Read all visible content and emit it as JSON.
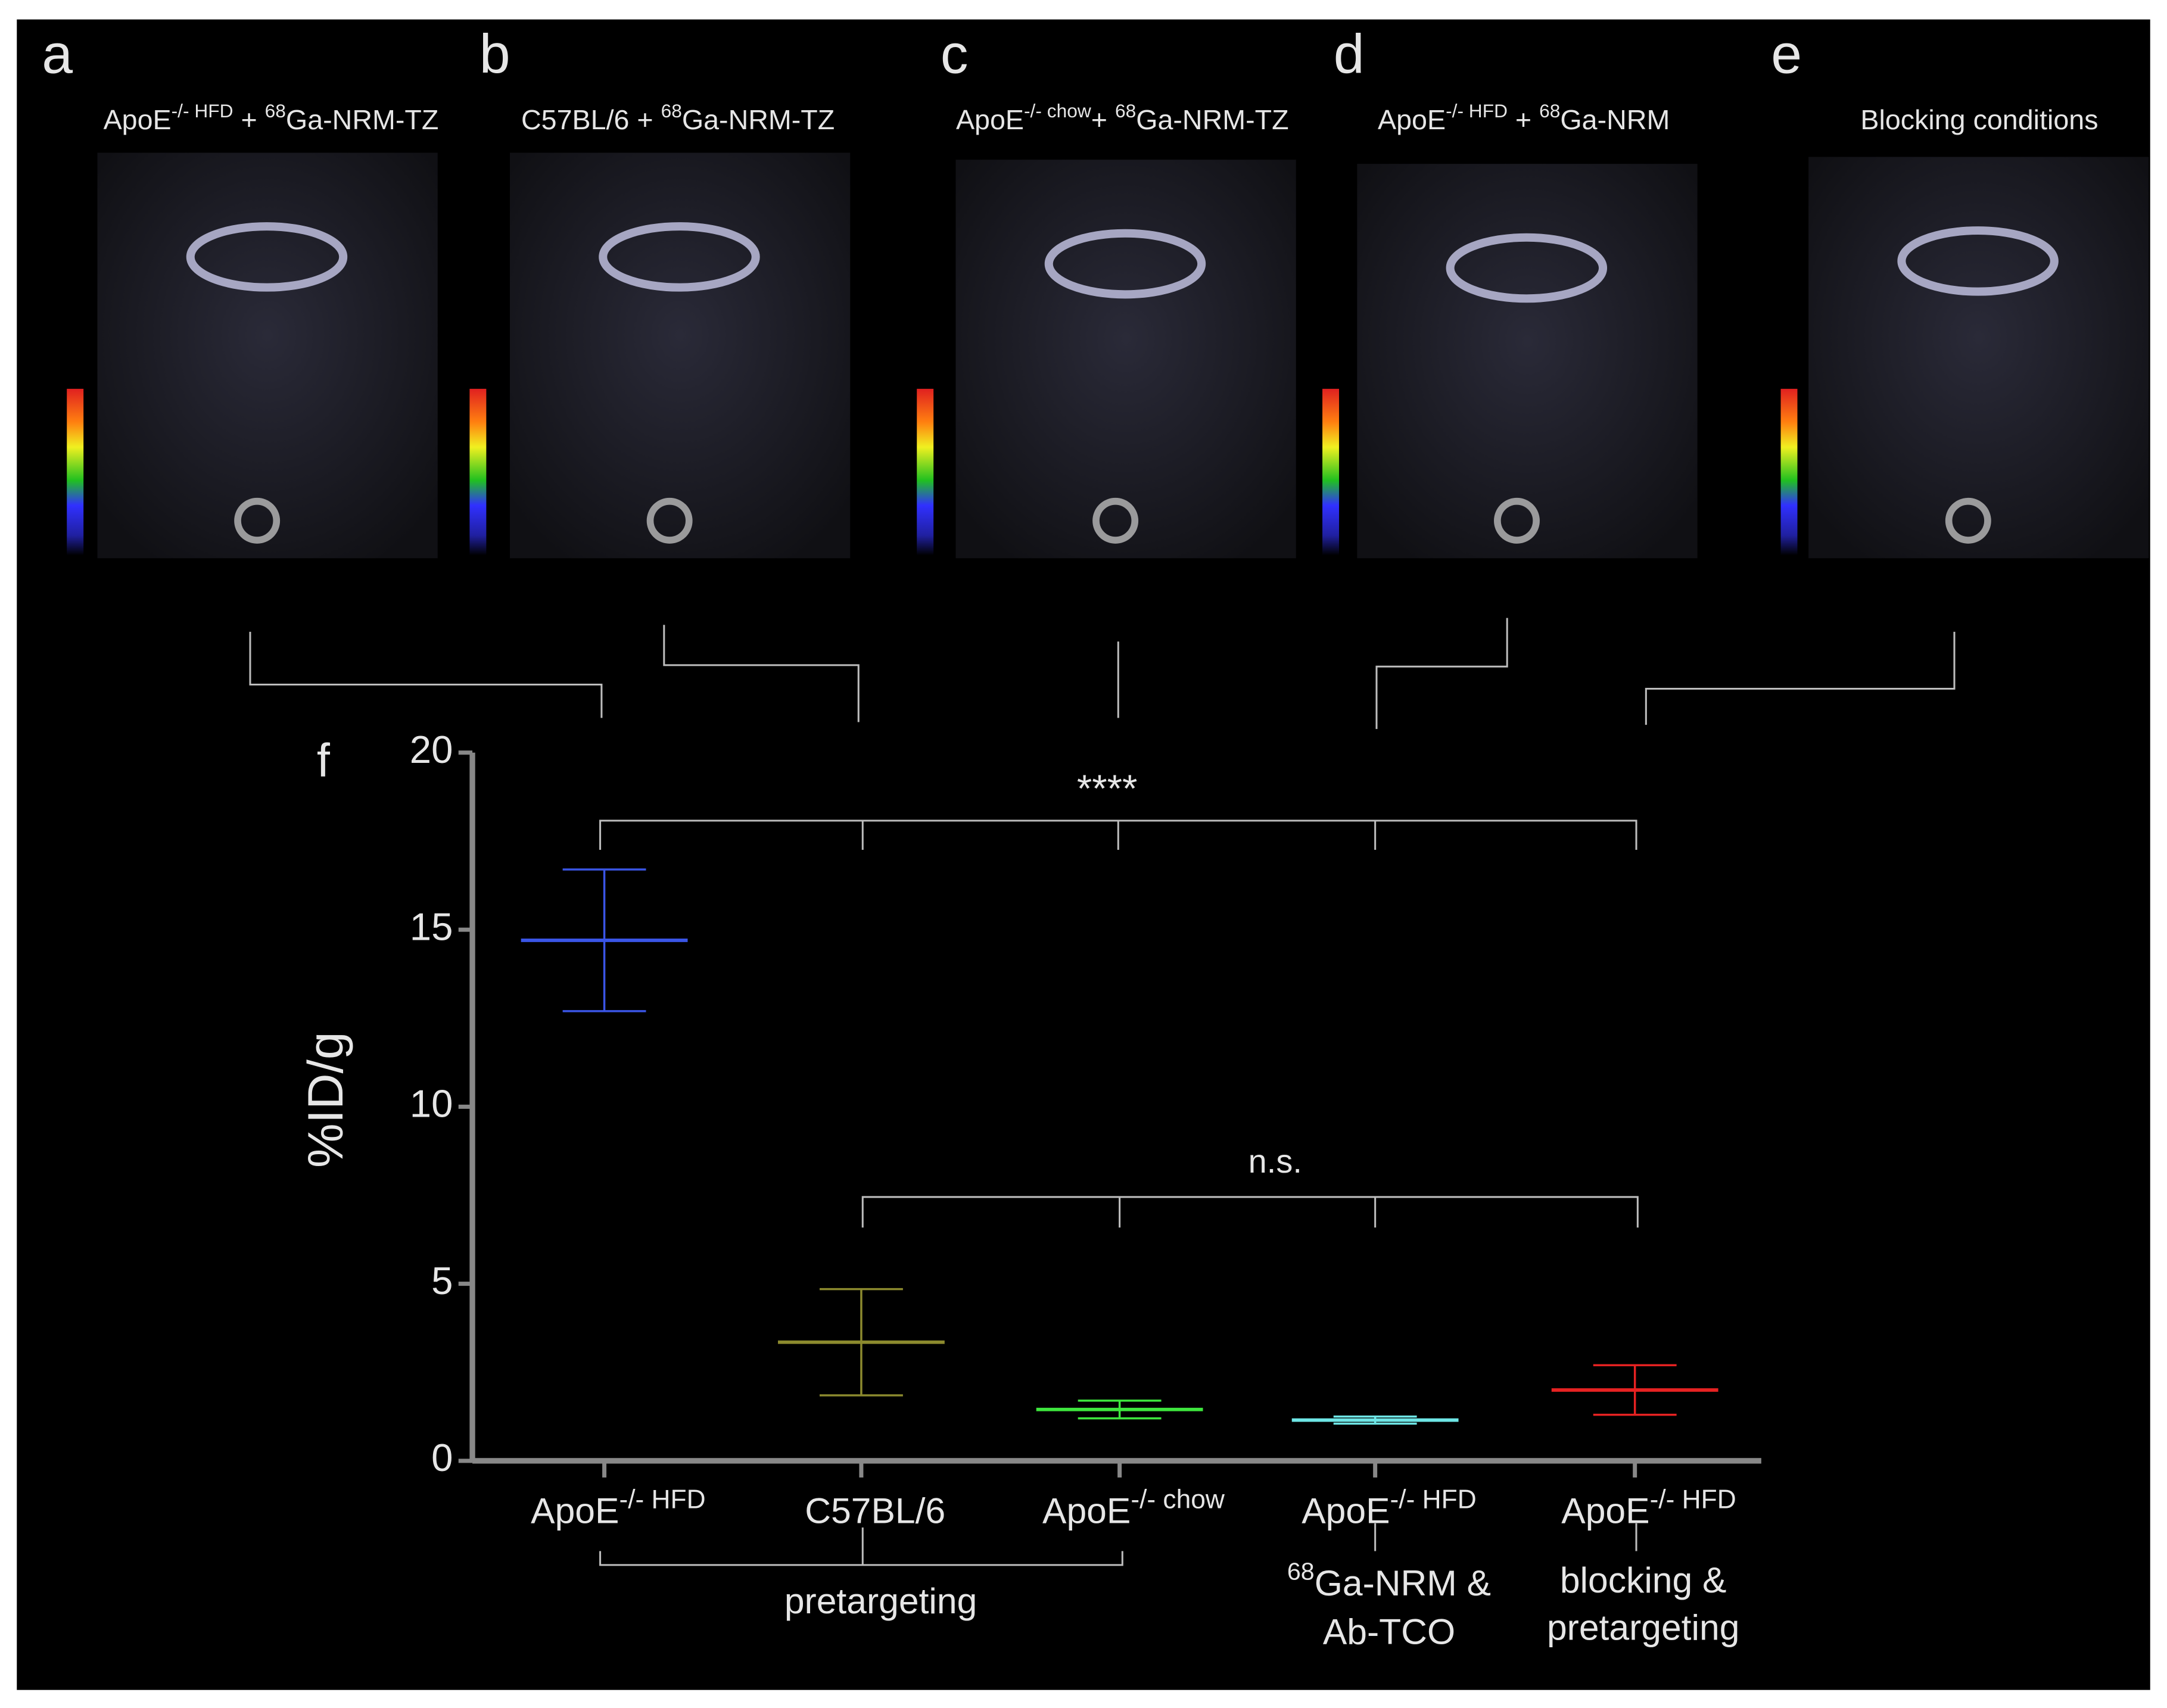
{
  "panels": [
    {
      "letter": "a",
      "title": [
        {
          "text": "ApoE"
        },
        {
          "text": "-/- HFD",
          "sup": true
        },
        {
          "text": " + "
        },
        {
          "text": "68",
          "sup": true
        },
        {
          "text": "Ga-NRM-TZ"
        }
      ]
    },
    {
      "letter": "b",
      "title": [
        {
          "text": "C57BL/6 + "
        },
        {
          "text": "68",
          "sup": true
        },
        {
          "text": "Ga-NRM-TZ"
        }
      ]
    },
    {
      "letter": "c",
      "title": [
        {
          "text": "ApoE"
        },
        {
          "text": "-/- chow",
          "sup": true
        },
        {
          "text": "+ "
        },
        {
          "text": "68",
          "sup": true
        },
        {
          "text": "Ga-NRM-TZ"
        }
      ]
    },
    {
      "letter": "d",
      "title": [
        {
          "text": "ApoE"
        },
        {
          "text": "-/-  HFD",
          "sup": true
        },
        {
          "text": " + "
        },
        {
          "text": "68",
          "sup": true
        },
        {
          "text": "Ga-NRM"
        }
      ]
    },
    {
      "letter": "e",
      "title": [
        {
          "text": "Blocking conditions"
        }
      ]
    }
  ],
  "chart_data": {
    "type": "errorbar",
    "panel_letter": "f",
    "y_label": "%ID/g",
    "categories": [
      "ApoE",
      "C57BL/6",
      "ApoE",
      "ApoE",
      "ApoE"
    ],
    "category_superscripts": [
      "-/- HFD",
      null,
      "-/- chow",
      "-/- HFD",
      "-/- HFD"
    ],
    "values": [
      14.7,
      3.35,
      1.45,
      1.15,
      2.0
    ],
    "errors": [
      2.0,
      1.5,
      0.25,
      0.1,
      0.7
    ],
    "colors": [
      "#3a55e6",
      "#8c8a2e",
      "#3ee63e",
      "#6ee6e6",
      "#e62222"
    ],
    "ylim": [
      0,
      20
    ],
    "yticks": [
      0,
      5,
      10,
      15,
      20
    ],
    "group_labels": {
      "pretargeting": "pretargeting",
      "ab_tco": [
        {
          "text": "68",
          "sup": true
        },
        {
          "text": "Ga-NRM &"
        }
      ],
      "ab_tco_line2": "Ab-TCO",
      "blocking": "blocking &",
      "blocking_line2": "pretargeting"
    },
    "significance": [
      "****",
      "n.s."
    ]
  }
}
